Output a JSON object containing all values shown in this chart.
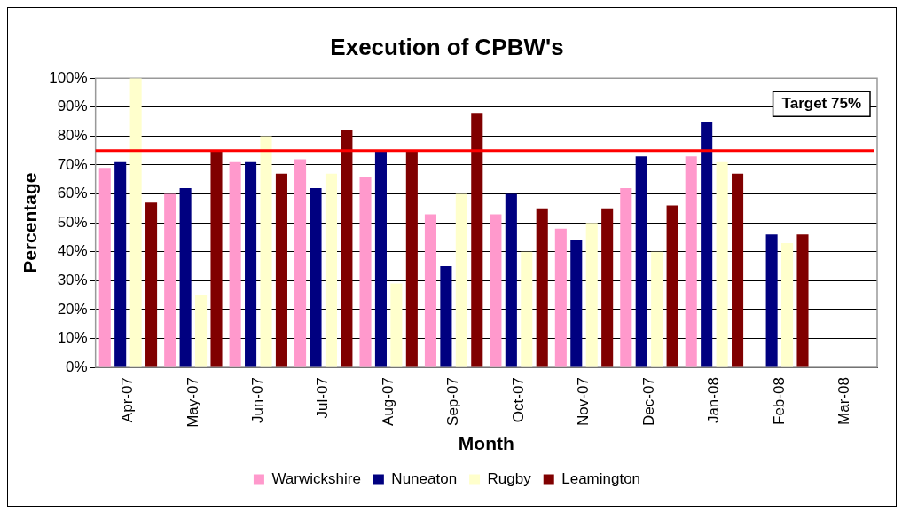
{
  "chart_data": {
    "type": "bar",
    "title": "Execution of CPBW's",
    "xlabel": "Month",
    "ylabel": "Percentage",
    "categories": [
      "Apr-07",
      "May-07",
      "Jun-07",
      "Jul-07",
      "Aug-07",
      "Sep-07",
      "Oct-07",
      "Nov-07",
      "Dec-07",
      "Jan-08",
      "Feb-08",
      "Mar-08"
    ],
    "series": [
      {
        "name": "Warwickshire",
        "color": "#ff99cc",
        "values": [
          69,
          60,
          71,
          72,
          66,
          53,
          53,
          48,
          62,
          73,
          null,
          null
        ]
      },
      {
        "name": "Nuneaton",
        "color": "#000080",
        "values": [
          71,
          62,
          71,
          62,
          75,
          35,
          60,
          44,
          73,
          85,
          46,
          null
        ]
      },
      {
        "name": "Rugby",
        "color": "#ffffcc",
        "values": [
          100,
          25,
          80,
          67,
          29,
          60,
          40,
          50,
          40,
          71,
          43,
          null
        ]
      },
      {
        "name": "Leamington",
        "color": "#800000",
        "values": [
          57,
          75,
          67,
          82,
          75,
          88,
          55,
          55,
          56,
          67,
          46,
          null
        ]
      }
    ],
    "ylim": [
      0,
      100
    ],
    "yticks": [
      {
        "value": 0,
        "label": "0%"
      },
      {
        "value": 10,
        "label": "10%"
      },
      {
        "value": 20,
        "label": "20%"
      },
      {
        "value": 30,
        "label": "30%"
      },
      {
        "value": 40,
        "label": "40%"
      },
      {
        "value": 50,
        "label": "50%"
      },
      {
        "value": 60,
        "label": "60%"
      },
      {
        "value": 70,
        "label": "70%"
      },
      {
        "value": 80,
        "label": "80%"
      },
      {
        "value": 90,
        "label": "90%"
      },
      {
        "value": 100,
        "label": "100%"
      }
    ],
    "ref_lines": [
      {
        "axis": "y",
        "value": 75,
        "label": "Target 75%",
        "color": "#ff0000"
      }
    ],
    "grid": "y",
    "legend": "bottom"
  }
}
